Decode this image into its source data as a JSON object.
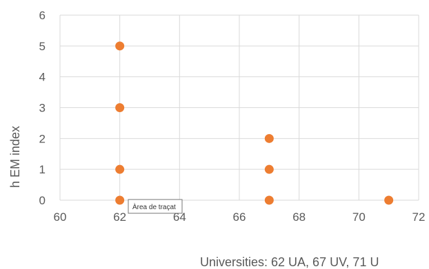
{
  "chart_data": {
    "type": "scatter",
    "xlabel": "Universities: 62 UA, 67 UV, 71 U",
    "ylabel": "h EM index",
    "xlim": [
      60,
      72
    ],
    "ylim": [
      0,
      6
    ],
    "xticks": [
      60,
      62,
      64,
      66,
      68,
      70,
      72
    ],
    "yticks": [
      0,
      1,
      2,
      3,
      4,
      5,
      6
    ],
    "grid": true,
    "series": [
      {
        "points": [
          {
            "x": 62,
            "y": 5
          },
          {
            "x": 62,
            "y": 3
          },
          {
            "x": 62,
            "y": 1
          },
          {
            "x": 62,
            "y": 0
          },
          {
            "x": 67,
            "y": 2
          },
          {
            "x": 67,
            "y": 1
          },
          {
            "x": 67,
            "y": 0
          },
          {
            "x": 71,
            "y": 0
          }
        ]
      }
    ]
  },
  "colors": {
    "marker": "#ED7D31",
    "grid": "#D9D9D9",
    "text": "#595959"
  },
  "tooltip": {
    "text": "Àrea de traçat"
  }
}
